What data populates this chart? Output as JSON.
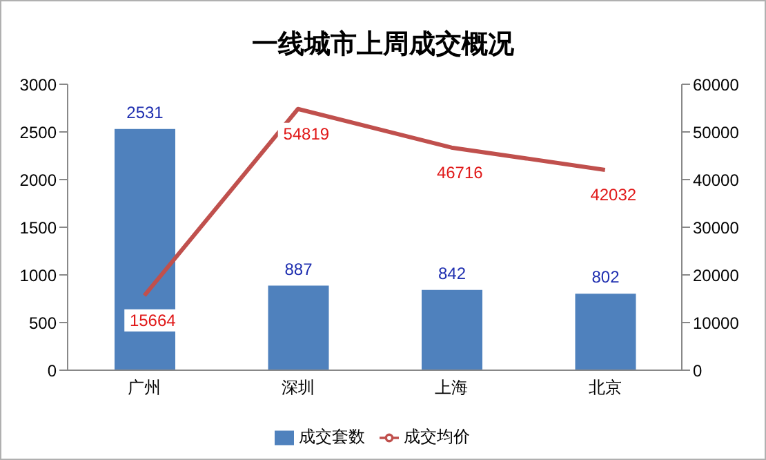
{
  "chart_data": {
    "type": "bar",
    "title": "一线城市上周成交概况",
    "categories": [
      "广州",
      "深圳",
      "上海",
      "北京"
    ],
    "series": [
      {
        "name": "成交套数",
        "color": "#4f81bd",
        "values": [
          2531,
          887,
          842,
          802
        ]
      },
      {
        "name": "成交均价",
        "type": "line",
        "axis": "y2",
        "color": "#c0504d",
        "values": [
          15664,
          54819,
          46716,
          42032
        ]
      }
    ],
    "ylim": [
      0,
      3000
    ],
    "yticks": [
      0,
      500,
      1000,
      1500,
      2000,
      2500,
      3000
    ],
    "y2lim": [
      0,
      60000
    ],
    "y2ticks": [
      0,
      10000,
      20000,
      30000,
      40000,
      50000,
      60000
    ],
    "data_labels": true,
    "legend": "bottom",
    "grid": false,
    "marker": "none",
    "line_style": "solid"
  }
}
